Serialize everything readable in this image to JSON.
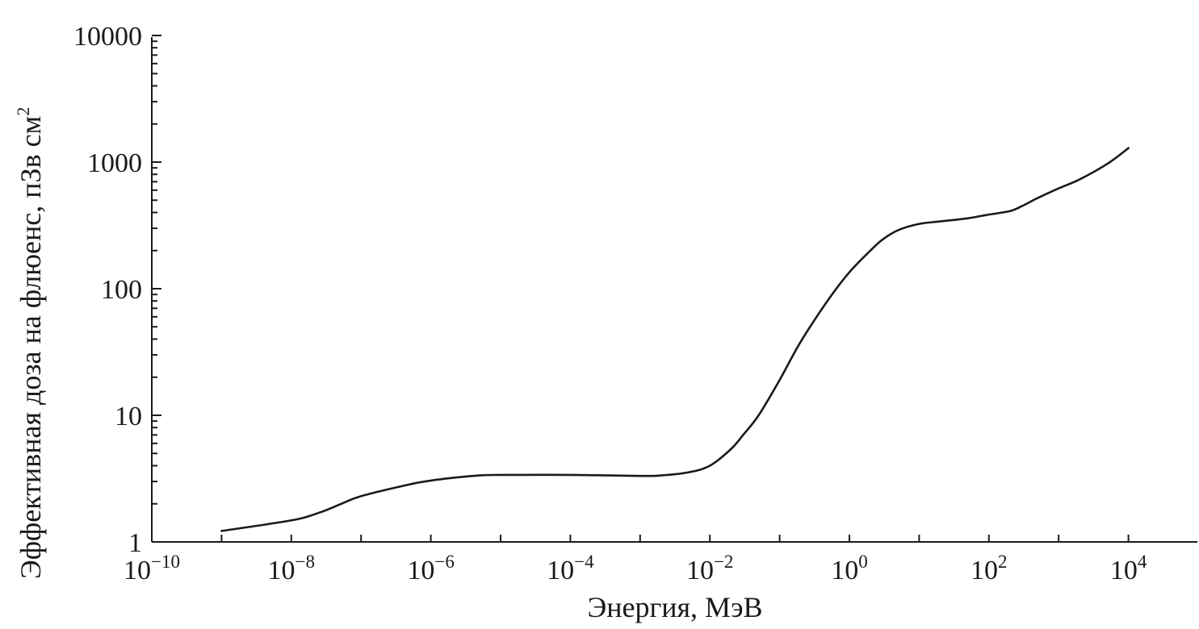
{
  "chart_data": {
    "type": "line",
    "title": "",
    "xlabel": "Энергия, МэВ",
    "ylabel": "Эффективная доза на флюенс, пЗв см",
    "ylabel_superscript": "2",
    "xscale": "log",
    "yscale": "log",
    "xlim": [
      1e-10,
      100000.0
    ],
    "ylim": [
      1,
      10000
    ],
    "grid": false,
    "x_ticks": [
      {
        "value": 1e-10,
        "base": "10",
        "exp": "−10"
      },
      {
        "value": 1e-08,
        "base": "10",
        "exp": "−8"
      },
      {
        "value": 1e-06,
        "base": "10",
        "exp": "−6"
      },
      {
        "value": 0.0001,
        "base": "10",
        "exp": "−4"
      },
      {
        "value": 0.01,
        "base": "10",
        "exp": "−2"
      },
      {
        "value": 1,
        "base": "10",
        "exp": "0"
      },
      {
        "value": 100,
        "base": "10",
        "exp": "2"
      },
      {
        "value": 10000,
        "base": "10",
        "exp": "4"
      }
    ],
    "y_ticks": [
      {
        "value": 1,
        "label": "1"
      },
      {
        "value": 10,
        "label": "10"
      },
      {
        "value": 100,
        "label": "100"
      },
      {
        "value": 1000,
        "label": "1000"
      },
      {
        "value": 10000,
        "label": "10000"
      }
    ],
    "series": [
      {
        "x": [
          1e-09,
          1e-08,
          2.5e-08,
          5e-08,
          1e-07,
          5e-07,
          1e-06,
          2e-06,
          5e-06,
          1e-05,
          0.0001,
          0.001,
          0.002,
          0.005,
          0.01,
          0.02,
          0.03,
          0.05,
          0.1,
          0.2,
          0.5,
          1,
          2,
          3,
          5,
          10,
          20,
          50,
          100,
          200,
          300,
          500,
          1000,
          2000,
          5000,
          10000
        ],
        "y": [
          1.22,
          1.48,
          1.7,
          1.98,
          2.3,
          2.85,
          3.05,
          3.2,
          3.35,
          3.38,
          3.38,
          3.32,
          3.35,
          3.55,
          4.0,
          5.4,
          7.0,
          10.0,
          19.0,
          38.0,
          82.0,
          135.0,
          200.0,
          245.0,
          290.0,
          325.0,
          340.0,
          360.0,
          385.0,
          410.0,
          450.0,
          520.0,
          620.0,
          730.0,
          970.0,
          1290.0
        ]
      }
    ]
  }
}
